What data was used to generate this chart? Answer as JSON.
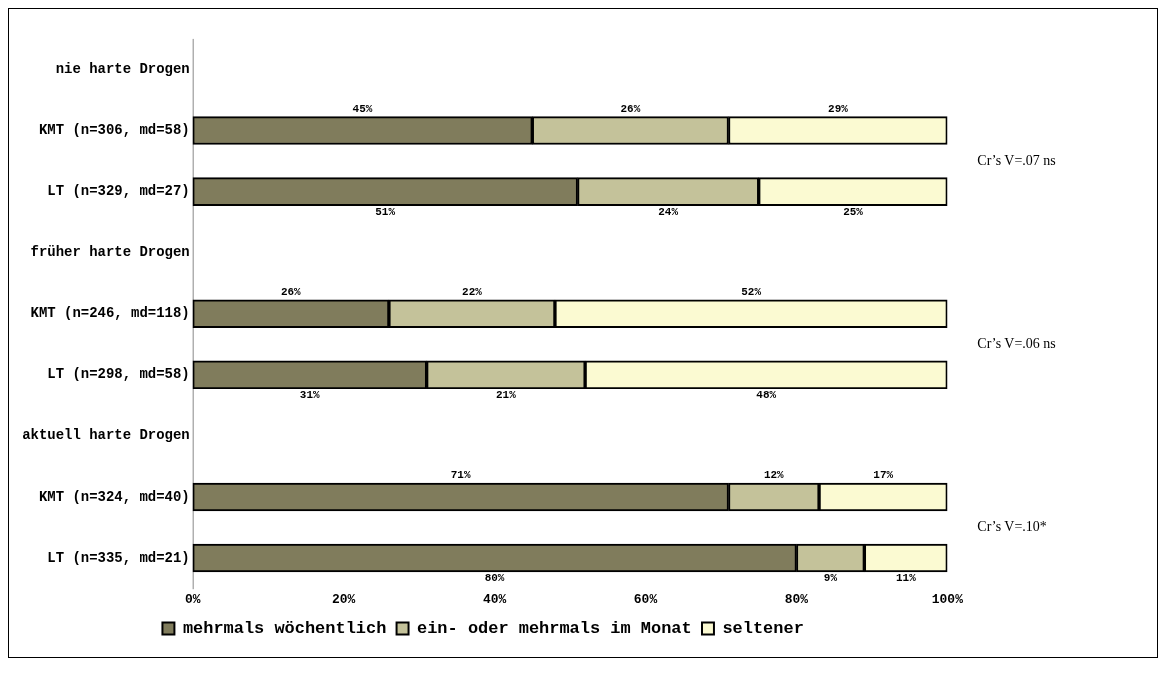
{
  "chart_data": {
    "type": "bar",
    "orientation": "horizontal",
    "stacked": true,
    "categories": [
      "nie harte Drogen",
      "KMT (n=306, md=58)",
      "LT (n=329, md=27)",
      "früher harte Drogen",
      "KMT (n=246, md=118)",
      "LT (n=298, md=58)",
      "aktuell harte Drogen",
      "KMT (n=324, md=40)",
      "LT (n=335, md=21)"
    ],
    "series": [
      {
        "name": "mehrmals wöchentlich",
        "color": "#807c5c",
        "values": [
          null,
          45,
          51,
          null,
          26,
          31,
          null,
          71,
          80
        ],
        "value_labels": [
          null,
          "45%",
          "51%",
          null,
          "26%",
          "31%",
          null,
          "71%",
          "80%"
        ]
      },
      {
        "name": "ein- oder mehrmals im Monat",
        "color": "#c4c29a",
        "values": [
          null,
          26,
          24,
          null,
          22,
          21,
          null,
          12,
          9
        ],
        "value_labels": [
          null,
          "26%",
          "24%",
          null,
          "22%",
          "21%",
          null,
          "12%",
          "9%"
        ]
      },
      {
        "name": "seltener",
        "color": "#fbfad2",
        "values": [
          null,
          29,
          25,
          null,
          52,
          48,
          null,
          17,
          11
        ],
        "value_labels": [
          null,
          "29%",
          "25%",
          null,
          "52%",
          "48%",
          null,
          "17%",
          "11%"
        ]
      }
    ],
    "xlim": [
      0,
      100
    ],
    "xticks": [
      {
        "value": 0,
        "label": "0%"
      },
      {
        "value": 20,
        "label": "20%"
      },
      {
        "value": 40,
        "label": "40%"
      },
      {
        "value": 60,
        "label": "60%"
      },
      {
        "value": 80,
        "label": "80%"
      },
      {
        "value": 100,
        "label": "100%"
      }
    ],
    "grid": false,
    "legend": "bottom",
    "annotations": [
      "Cr’s V=.07 ns",
      "Cr’s V=.06 ns",
      "Cr’s V=.10*"
    ]
  }
}
